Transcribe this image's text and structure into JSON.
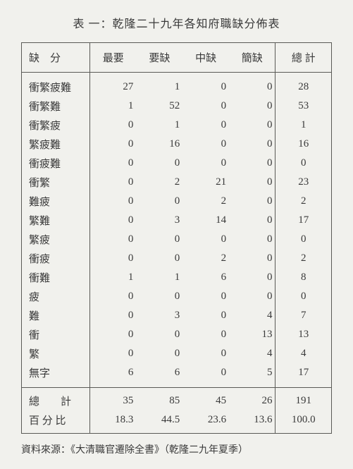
{
  "title": "表 一：乾隆二十九年各知府職缺分佈表",
  "header": {
    "rowlabel": "缺　分",
    "cols": [
      "最要",
      "要缺",
      "中缺",
      "簡缺"
    ],
    "total": "總 計"
  },
  "rows": [
    {
      "label": "衝繁疲難",
      "v": [
        "27",
        "1",
        "0",
        "0"
      ],
      "t": "28"
    },
    {
      "label": "衝繁難",
      "v": [
        "1",
        "52",
        "0",
        "0"
      ],
      "t": "53"
    },
    {
      "label": "衝繁疲",
      "v": [
        "0",
        "1",
        "0",
        "0"
      ],
      "t": "1"
    },
    {
      "label": "繁疲難",
      "v": [
        "0",
        "16",
        "0",
        "0"
      ],
      "t": "16"
    },
    {
      "label": "衝疲難",
      "v": [
        "0",
        "0",
        "0",
        "0"
      ],
      "t": "0"
    },
    {
      "label": "衝繁",
      "v": [
        "0",
        "2",
        "21",
        "0"
      ],
      "t": "23"
    },
    {
      "label": "難疲",
      "v": [
        "0",
        "0",
        "2",
        "0"
      ],
      "t": "2"
    },
    {
      "label": "繁難",
      "v": [
        "0",
        "3",
        "14",
        "0"
      ],
      "t": "17"
    },
    {
      "label": "繁疲",
      "v": [
        "0",
        "0",
        "0",
        "0"
      ],
      "t": "0"
    },
    {
      "label": "衝疲",
      "v": [
        "0",
        "0",
        "2",
        "0"
      ],
      "t": "2"
    },
    {
      "label": "衝難",
      "v": [
        "1",
        "1",
        "6",
        "0"
      ],
      "t": "8"
    },
    {
      "label": "疲",
      "v": [
        "0",
        "0",
        "0",
        "0"
      ],
      "t": "0"
    },
    {
      "label": "難",
      "v": [
        "0",
        "3",
        "0",
        "4"
      ],
      "t": "7"
    },
    {
      "label": "衝",
      "v": [
        "0",
        "0",
        "0",
        "13"
      ],
      "t": "13"
    },
    {
      "label": "繁",
      "v": [
        "0",
        "0",
        "0",
        "4"
      ],
      "t": "4"
    },
    {
      "label": "無字",
      "v": [
        "6",
        "6",
        "0",
        "5"
      ],
      "t": "17"
    }
  ],
  "footer": [
    {
      "label": "總　　計",
      "v": [
        "35",
        "85",
        "45",
        "26"
      ],
      "t": "191"
    },
    {
      "label": "百 分 比",
      "v": [
        "18.3",
        "44.5",
        "23.6",
        "13.6"
      ],
      "t": "100.0"
    }
  ],
  "source": "資料來源：《大清職官遷除全書》（乾隆二九年夏季）"
}
